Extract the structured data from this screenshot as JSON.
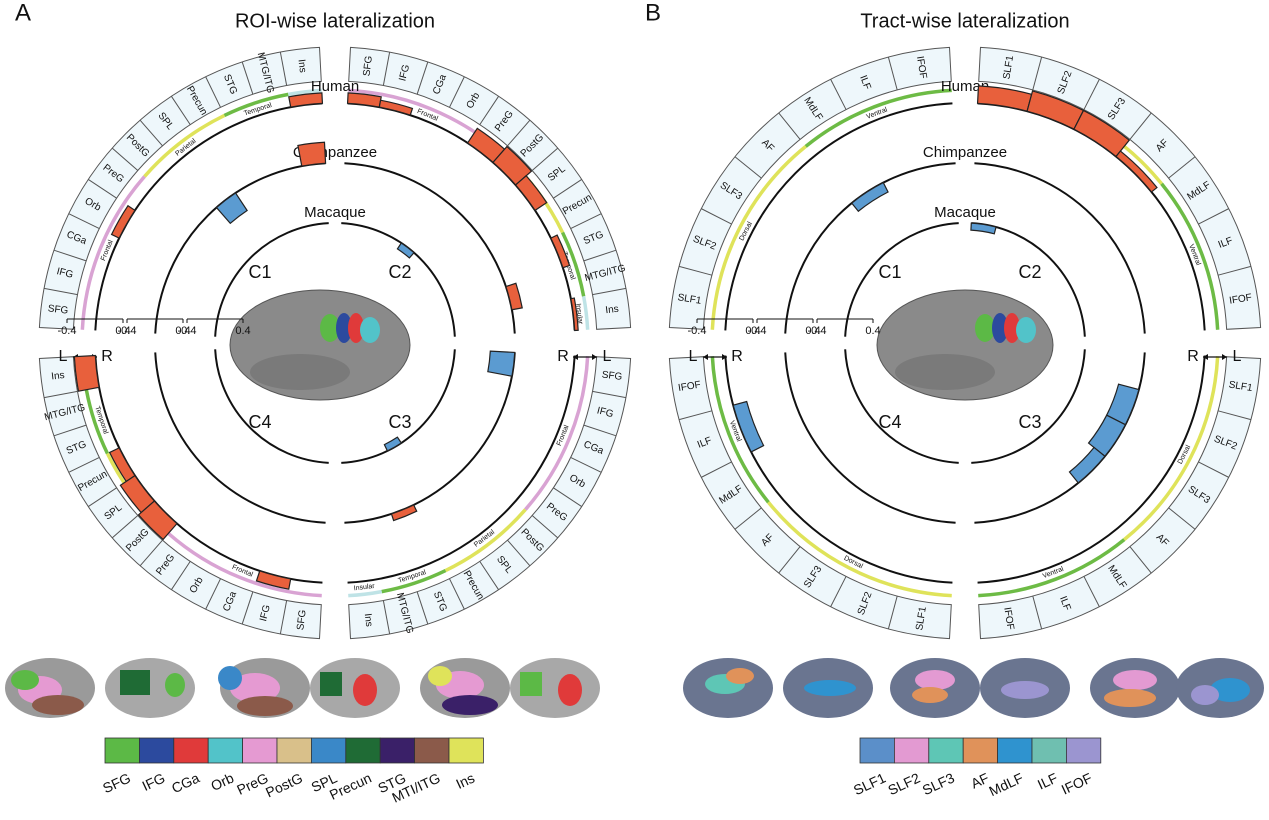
{
  "panels": [
    {
      "letter": "A",
      "title": "ROI-wise lateralization",
      "species": [
        "Human",
        "Chimpanzee",
        "Macaque"
      ],
      "clusters": [
        "C1",
        "C2",
        "C3",
        "C4"
      ],
      "sides": [
        "L",
        "R"
      ],
      "scale_ticks": [
        -0.4,
        0.4
      ],
      "positive_color": "#e8603c",
      "negative_color": "#5b9bd1",
      "groups": [
        {
          "name": "Frontal",
          "color": "#d9a3d3",
          "rois": [
            "SFG",
            "IFG",
            "CGa",
            "Orb",
            "PreG"
          ]
        },
        {
          "name": "Parietal",
          "color": "#dfe35a",
          "rois": [
            "PostG",
            "SPL",
            "Precun"
          ]
        },
        {
          "name": "Temporal",
          "color": "#6dbb45",
          "rois": [
            "STG",
            "MTG/ITG"
          ]
        },
        {
          "name": "Insular",
          "color": "#bfe3e6",
          "rois": [
            "Ins"
          ]
        }
      ],
      "bars": [
        {
          "cluster": "C1",
          "species": "Human",
          "roi": "Ins",
          "value": 0.15
        },
        {
          "cluster": "C1",
          "species": "Human",
          "roi": "Orb",
          "value": 0.12
        },
        {
          "cluster": "C1",
          "species": "Chimpanzee",
          "roi": "SPL",
          "value": -0.3
        },
        {
          "cluster": "C1",
          "species": "Chimpanzee",
          "roi": "Ins",
          "value": 0.3
        },
        {
          "cluster": "C2",
          "species": "Human",
          "roi": "SFG",
          "value": 0.15
        },
        {
          "cluster": "C2",
          "species": "Human",
          "roi": "IFG",
          "value": 0.1
        },
        {
          "cluster": "C2",
          "species": "Human",
          "roi": "PreG",
          "value": 0.25
        },
        {
          "cluster": "C2",
          "species": "Human",
          "roi": "PostG",
          "value": 0.3
        },
        {
          "cluster": "C2",
          "species": "Human",
          "roi": "SPL",
          "value": 0.2
        },
        {
          "cluster": "C2",
          "species": "Human",
          "roi": "STG",
          "value": 0.1
        },
        {
          "cluster": "C2",
          "species": "Human",
          "roi": "Ins",
          "value": 0.05
        },
        {
          "cluster": "C2",
          "species": "Chimpanzee",
          "roi": "MTG/ITG",
          "value": 0.15
        },
        {
          "cluster": "C2",
          "species": "Macaque",
          "roi": "PreG",
          "value": -0.1
        },
        {
          "cluster": "C3",
          "species": "Chimpanzee",
          "roi": "SFG",
          "value": -0.35
        },
        {
          "cluster": "C3",
          "species": "Chimpanzee",
          "roi": "STG",
          "value": 0.1
        },
        {
          "cluster": "C3",
          "species": "Macaque",
          "roi": "Precun",
          "value": -0.1
        },
        {
          "cluster": "C4",
          "species": "Human",
          "roi": "Ins",
          "value": 0.3
        },
        {
          "cluster": "C4",
          "species": "Human",
          "roi": "Precun",
          "value": 0.15
        },
        {
          "cluster": "C4",
          "species": "Human",
          "roi": "SPL",
          "value": 0.25
        },
        {
          "cluster": "C4",
          "species": "Human",
          "roi": "PostG",
          "value": 0.3
        },
        {
          "cluster": "C4",
          "species": "Human",
          "roi": "IFG",
          "value": 0.15
        }
      ],
      "legend": [
        {
          "name": "SFG",
          "color": "#5cb946"
        },
        {
          "name": "IFG",
          "color": "#2c4a9e"
        },
        {
          "name": "CGa",
          "color": "#e03a3a"
        },
        {
          "name": "Orb",
          "color": "#52c3c9"
        },
        {
          "name": "PreG",
          "color": "#e59ad2"
        },
        {
          "name": "PostG",
          "color": "#d9c08a"
        },
        {
          "name": "SPL",
          "color": "#3a88c8"
        },
        {
          "name": "Precun",
          "color": "#1f6b35"
        },
        {
          "name": "STG",
          "color": "#3a2068"
        },
        {
          "name": "MTI/ITG",
          "color": "#8b5a4a"
        },
        {
          "name": "Ins",
          "color": "#dfe35a"
        }
      ]
    },
    {
      "letter": "B",
      "title": "Tract-wise lateralization",
      "species": [
        "Human",
        "Chimpanzee",
        "Macaque"
      ],
      "clusters": [
        "C1",
        "C2",
        "C3",
        "C4"
      ],
      "sides": [
        "L",
        "R"
      ],
      "scale_ticks": [
        -0.4,
        0.4
      ],
      "positive_color": "#e8603c",
      "negative_color": "#5b9bd1",
      "groups": [
        {
          "name": "Dorsal",
          "color": "#dfe35a",
          "rois": [
            "SLF1",
            "SLF2",
            "SLF3",
            "AF"
          ]
        },
        {
          "name": "Ventral",
          "color": "#6dbb45",
          "rois": [
            "MdLF",
            "ILF",
            "IFOF"
          ]
        }
      ],
      "bars": [
        {
          "cluster": "C1",
          "species": "Chimpanzee",
          "roi": "MdLF",
          "value": -0.15
        },
        {
          "cluster": "C2",
          "species": "Human",
          "roi": "SLF1",
          "value": 0.25
        },
        {
          "cluster": "C2",
          "species": "Human",
          "roi": "SLF2",
          "value": 0.3
        },
        {
          "cluster": "C2",
          "species": "Human",
          "roi": "SLF3",
          "value": 0.3
        },
        {
          "cluster": "C2",
          "species": "Human",
          "roi": "AF",
          "value": 0.1
        },
        {
          "cluster": "C2",
          "species": "Macaque",
          "roi": "SLF1",
          "value": -0.1
        },
        {
          "cluster": "C3",
          "species": "Chimpanzee",
          "roi": "SLF2",
          "value": -0.3
        },
        {
          "cluster": "C3",
          "species": "Chimpanzee",
          "roi": "SLF3",
          "value": -0.3
        },
        {
          "cluster": "C3",
          "species": "Chimpanzee",
          "roi": "AF",
          "value": -0.2
        },
        {
          "cluster": "C4",
          "species": "Human",
          "roi": "ILF",
          "value": -0.2
        }
      ],
      "legend": [
        {
          "name": "SLF1",
          "color": "#5b8fc9"
        },
        {
          "name": "SLF2",
          "color": "#e39ad2"
        },
        {
          "name": "SLF3",
          "color": "#5ec6b5"
        },
        {
          "name": "AF",
          "color": "#e0925a"
        },
        {
          "name": "MdLF",
          "color": "#2f93cf"
        },
        {
          "name": "ILF",
          "color": "#6fbfb0"
        },
        {
          "name": "IFOF",
          "color": "#9b95d0"
        }
      ]
    }
  ]
}
